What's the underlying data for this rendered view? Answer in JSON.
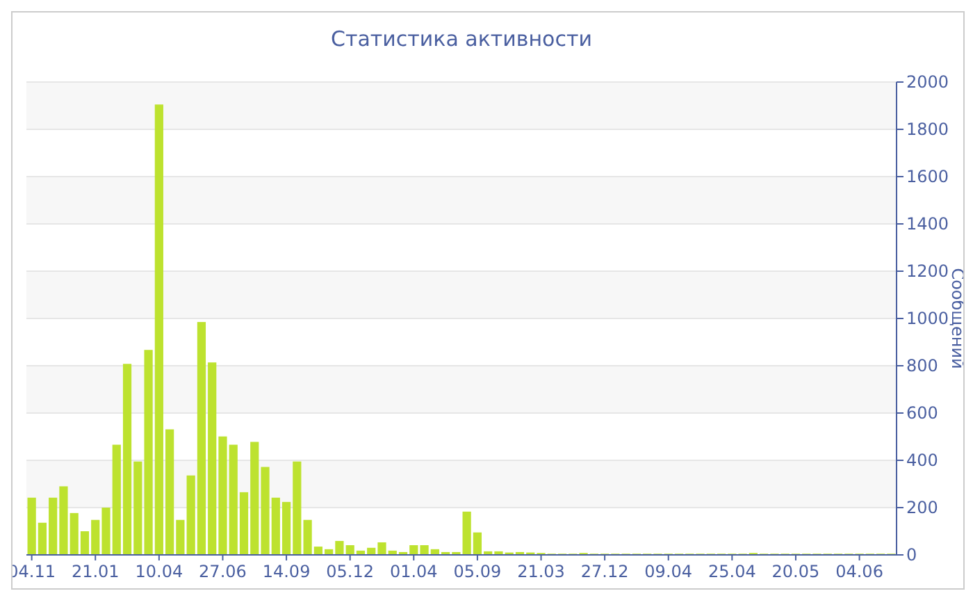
{
  "chart_data": {
    "type": "bar",
    "title": "Статистика активности",
    "ylabel": "Сообщений",
    "categories": [
      "04.11",
      null,
      null,
      null,
      null,
      null,
      "21.01",
      null,
      null,
      null,
      null,
      null,
      "10.04",
      null,
      null,
      null,
      null,
      null,
      "27.06",
      null,
      null,
      null,
      null,
      null,
      "14.09",
      null,
      null,
      null,
      null,
      null,
      "05.12",
      null,
      null,
      null,
      null,
      null,
      "01.04",
      null,
      null,
      null,
      null,
      null,
      "05.09",
      null,
      null,
      null,
      null,
      null,
      "21.03",
      null,
      null,
      null,
      null,
      null,
      "27.12",
      null,
      null,
      null,
      null,
      null,
      "09.04",
      null,
      null,
      null,
      null,
      null,
      "25.04",
      null,
      null,
      null,
      null,
      null,
      "20.05",
      null,
      null,
      null,
      null,
      null,
      "04.06",
      null,
      null,
      null
    ],
    "values": [
      242,
      136,
      242,
      290,
      177,
      100,
      148,
      200,
      466,
      808,
      395,
      867,
      1905,
      531,
      148,
      336,
      985,
      814,
      501,
      466,
      265,
      478,
      372,
      242,
      224,
      395,
      148,
      35,
      24,
      59,
      41,
      18,
      30,
      53,
      18,
      12,
      41,
      41,
      24,
      12,
      12,
      183,
      95,
      15,
      15,
      10,
      12,
      10,
      8,
      5,
      5,
      5,
      8,
      5,
      5,
      5,
      5,
      5,
      5,
      5,
      5,
      5,
      5,
      5,
      5,
      5,
      5,
      5,
      8,
      5,
      5,
      5,
      5,
      5,
      5,
      5,
      5,
      5,
      5,
      5,
      5,
      5
    ],
    "color": "#bde22f",
    "ylim": [
      0,
      2000
    ],
    "yticks": [
      0,
      200,
      400,
      600,
      800,
      1000,
      1200,
      1400,
      1600,
      1800,
      2000
    ],
    "grid": "y"
  }
}
